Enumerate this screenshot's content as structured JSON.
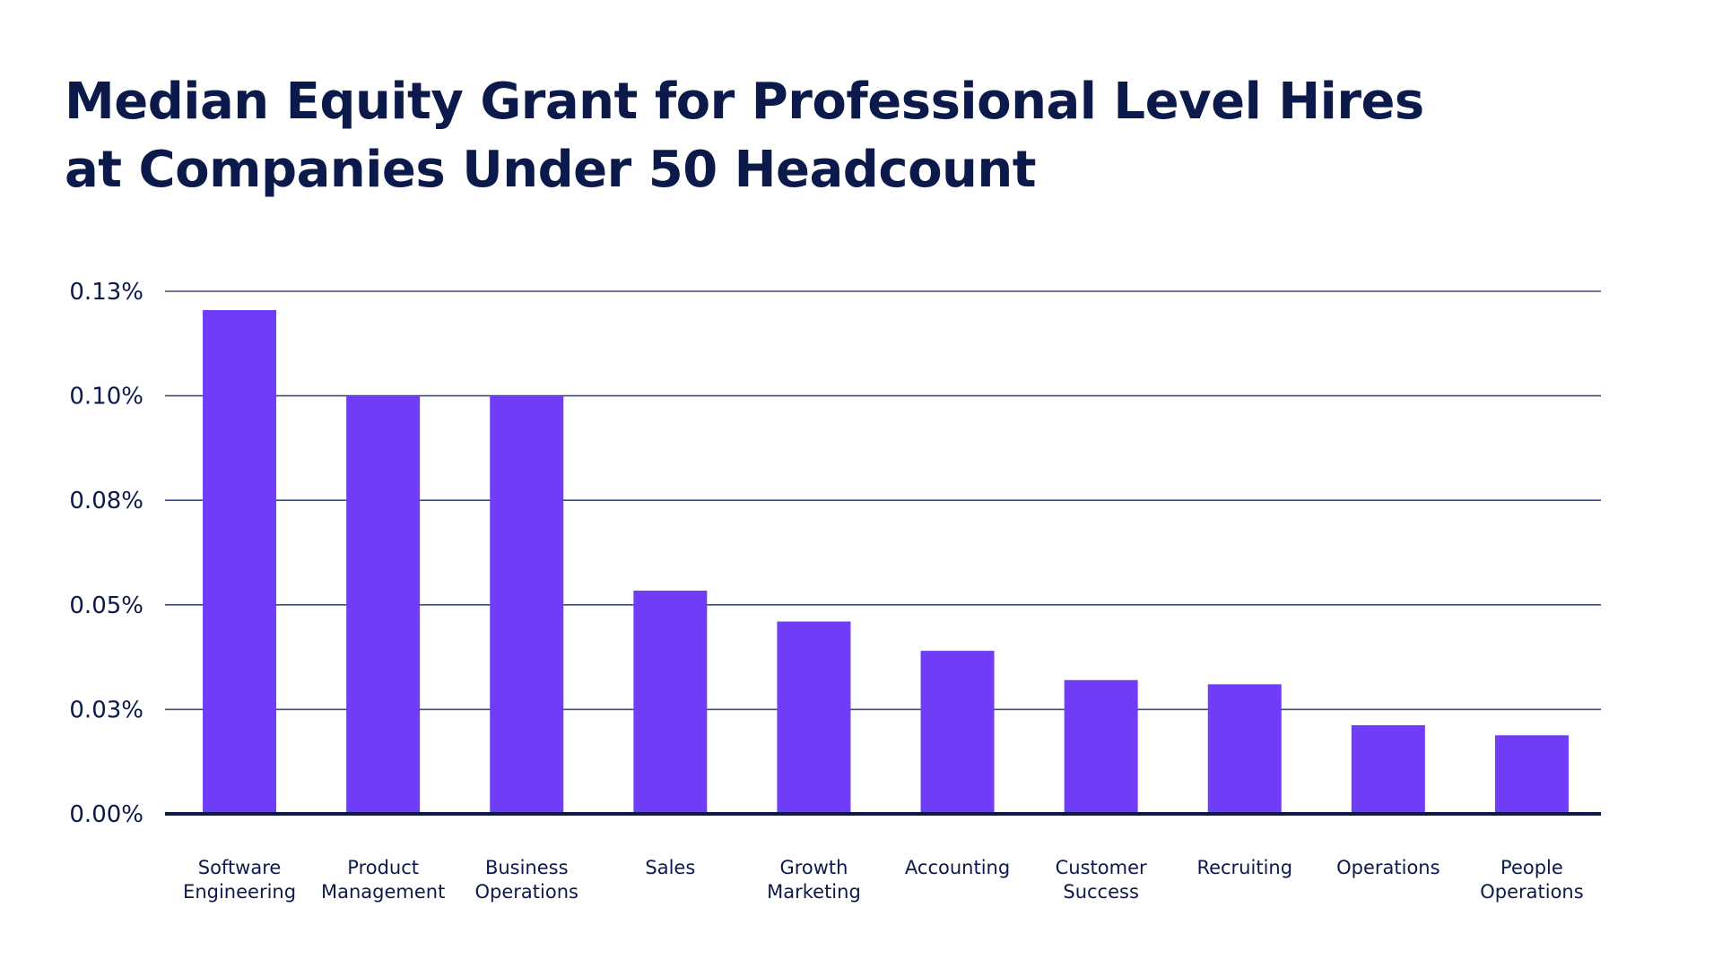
{
  "chart_data": {
    "type": "bar",
    "title_lines": [
      "Median Equity Grant for Professional Level Hires",
      "at Companies Under 50 Headcount"
    ],
    "categories": [
      [
        "Software",
        "Engineering"
      ],
      [
        "Product",
        "Management"
      ],
      [
        "Business",
        "Operations"
      ],
      [
        "Sales"
      ],
      [
        "Growth",
        "Marketing"
      ],
      [
        "Accounting"
      ],
      [
        "Customer",
        "Success"
      ],
      [
        "Recruiting"
      ],
      [
        "Operations"
      ],
      [
        "People",
        "Operations"
      ]
    ],
    "values": [
      0.1205,
      0.1,
      0.1,
      0.0534,
      0.046,
      0.039,
      0.032,
      0.031,
      0.0212,
      0.0188
    ],
    "y_ticks": [
      0,
      0.025,
      0.05,
      0.075,
      0.1,
      0.125
    ],
    "y_tick_labels": [
      "0.00%",
      "0.03%",
      "0.05%",
      "0.08%",
      "0.10%",
      "0.13%"
    ],
    "ylim": [
      0,
      0.125
    ],
    "grid": true,
    "colors": {
      "bar": "#6f3cf7",
      "grid": "#3f4b7a",
      "axis": "#0b1a4a",
      "text": "#0b1a4a"
    }
  }
}
